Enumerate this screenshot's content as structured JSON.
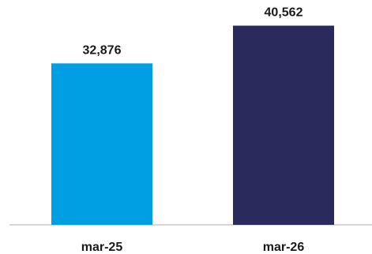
{
  "chart_data": {
    "type": "bar",
    "categories": [
      "mar-25",
      "mar-26"
    ],
    "values": [
      32876,
      40562
    ],
    "value_labels": [
      "32,876",
      "40,562"
    ],
    "bar_colors": [
      "#009ee3",
      "#2b2a5c"
    ],
    "axis_color": "#c8c8c8",
    "ylim": [
      0,
      44500
    ],
    "grid": false,
    "legend": "none"
  }
}
